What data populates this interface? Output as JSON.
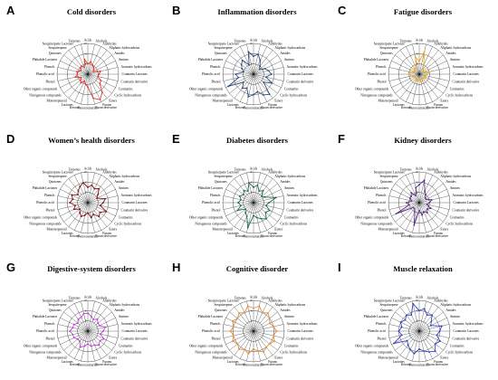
{
  "figure": {
    "panels": [
      "A",
      "B",
      "C",
      "D",
      "E",
      "F",
      "G",
      "H",
      "I"
    ]
  },
  "chart_data": [
    {
      "type": "radar",
      "panel": "A",
      "title": "Cold disorders",
      "color": "#e53935",
      "categories": [
        "Acids",
        "Alcohols",
        "Aldehydes",
        "Aliphatic hydrocarbons",
        "Amides",
        "Amines",
        "Aromatic hydrocarbons",
        "Coumarin Lactones",
        "Coumarin derivative",
        "Coumarins",
        "Cyclic hydrocarbons",
        "Esters",
        "Furans",
        "Furan derivative",
        "Furocoumarins",
        "Ketones",
        "Lactones",
        "Monoterpenoid",
        "Nitrogenous compounds",
        "Other organic compounds",
        "Phenol",
        "Phenolic acid",
        "Phenols",
        "Phthalide Lactones",
        "Quinones",
        "Sesquiterpene",
        "Sesquiterpene Lactones",
        "Terpenes"
      ],
      "ticks": [
        "20",
        "40",
        "60"
      ],
      "rmax": 60,
      "values": [
        20,
        25,
        20,
        18,
        15,
        12,
        25,
        22,
        20,
        28,
        30,
        45,
        55,
        48,
        25,
        20,
        15,
        22,
        18,
        15,
        25,
        20,
        22,
        15,
        18,
        20,
        15,
        30
      ]
    },
    {
      "type": "radar",
      "panel": "B",
      "title": "Inflammation disorders",
      "color": "#2e4d7b",
      "categories": [
        "Acids",
        "Alcohols",
        "Aldehydes",
        "Aliphatic hydrocarbons",
        "Amides",
        "Amines",
        "Aromatic hydrocarbons",
        "Coumarin Lactones",
        "Coumarin derivative",
        "Coumarins",
        "Cyclic hydrocarbons",
        "Esters",
        "Furans",
        "Furan derivative",
        "Furocoumarins",
        "Ketones",
        "Lactones",
        "Monoterpenoid",
        "Nitrogenous compounds",
        "Other organic compounds",
        "Phenol",
        "Phenolic acid",
        "Phenols",
        "Phthalide Lactones",
        "Quinones",
        "Sesquiterpene",
        "Sesquiterpene Lactones",
        "Terpenes"
      ],
      "ticks": [
        "20",
        "40",
        "60"
      ],
      "rmax": 60,
      "values": [
        35,
        40,
        30,
        20,
        15,
        25,
        30,
        35,
        25,
        40,
        25,
        50,
        45,
        35,
        40,
        45,
        30,
        35,
        25,
        55,
        30,
        35,
        20,
        25,
        30,
        35,
        20,
        45
      ]
    },
    {
      "type": "radar",
      "panel": "C",
      "title": "Fatigue disorders",
      "color": "#f0a81c",
      "categories": [
        "Acids",
        "Alcohols",
        "Aldehydes",
        "Aliphatic hydrocarbons",
        "Amides",
        "Amines",
        "Aromatic hydrocarbons",
        "Coumarin Lactones",
        "Coumarin derivative",
        "Coumarins",
        "Cyclic hydrocarbons",
        "Esters",
        "Furans",
        "Furan derivative",
        "Furocoumarins",
        "Ketones",
        "Lactones",
        "Monoterpenoid",
        "Nitrogenous compounds",
        "Other organic compounds",
        "Phenol",
        "Phenolic acid",
        "Phenols",
        "Phthalide Lactones",
        "Quinones",
        "Sesquiterpene",
        "Sesquiterpene Lactones",
        "Terpenes"
      ],
      "ticks": [
        "20",
        "40",
        "60"
      ],
      "rmax": 60,
      "values": [
        25,
        45,
        20,
        12,
        10,
        10,
        20,
        15,
        10,
        15,
        12,
        10,
        15,
        15,
        10,
        12,
        15,
        10,
        10,
        12,
        15,
        20,
        18,
        10,
        12,
        15,
        12,
        35
      ]
    },
    {
      "type": "radar",
      "panel": "D",
      "title": "Women’s health disorders",
      "color": "#7b1113",
      "categories": [
        "Acids",
        "Alcohols",
        "Aldehydes",
        "Aliphatic hydrocarbons",
        "Amides",
        "Amines",
        "Aromatic hydrocarbons",
        "Coumarin Lactones",
        "Coumarin derivative",
        "Coumarins",
        "Cyclic hydrocarbons",
        "Esters",
        "Furans",
        "Furan derivative",
        "Furocoumarins",
        "Ketones",
        "Lactones",
        "Monoterpenoid",
        "Nitrogenous compounds",
        "Other organic compounds",
        "Phenol",
        "Phenolic acid",
        "Phenols",
        "Phthalide Lactones",
        "Quinones",
        "Sesquiterpene",
        "Sesquiterpene Lactones",
        "Terpenes"
      ],
      "ticks": [
        "20",
        "40",
        "60"
      ],
      "rmax": 60,
      "values": [
        30,
        35,
        30,
        35,
        25,
        20,
        35,
        30,
        25,
        40,
        30,
        35,
        25,
        30,
        20,
        25,
        30,
        25,
        20,
        30,
        25,
        35,
        30,
        35,
        25,
        30,
        35,
        40
      ]
    },
    {
      "type": "radar",
      "panel": "E",
      "title": "Diabetes disorders",
      "color": "#1d6b45",
      "categories": [
        "Acids",
        "Alcohols",
        "Aldehydes",
        "Aliphatic hydrocarbons",
        "Amides",
        "Amines",
        "Aromatic hydrocarbons",
        "Coumarin Lactones",
        "Coumarin derivative",
        "Coumarins",
        "Cyclic hydrocarbons",
        "Esters",
        "Furans",
        "Furan derivative",
        "Furocoumarins",
        "Ketones",
        "Lactones",
        "Monoterpenoid",
        "Nitrogenous compounds",
        "Other organic compounds",
        "Phenol",
        "Phenolic acid",
        "Phenols",
        "Phthalide Lactones",
        "Quinones",
        "Sesquiterpene",
        "Sesquiterpene Lactones",
        "Terpenes"
      ],
      "ticks": [
        "20",
        "40",
        "60"
      ],
      "rmax": 60,
      "values": [
        30,
        35,
        25,
        30,
        20,
        25,
        45,
        30,
        25,
        35,
        30,
        40,
        35,
        30,
        25,
        50,
        30,
        25,
        20,
        35,
        25,
        30,
        25,
        30,
        25,
        30,
        25,
        40
      ]
    },
    {
      "type": "radar",
      "panel": "F",
      "title": "Kidney disorders",
      "color": "#5a2a8c",
      "categories": [
        "Acids",
        "Alcohols",
        "Aldehydes",
        "Aliphatic hydrocarbons",
        "Amides",
        "Amines",
        "Aromatic hydrocarbons",
        "Coumarin Lactones",
        "Coumarin derivative",
        "Coumarins",
        "Cyclic hydrocarbons",
        "Esters",
        "Furans",
        "Furan derivative",
        "Furocoumarins",
        "Ketones",
        "Lactones",
        "Monoterpenoid",
        "Nitrogenous compounds",
        "Other organic compounds",
        "Phenol",
        "Phenolic acid",
        "Phenols",
        "Phthalide Lactones",
        "Quinones",
        "Sesquiterpene",
        "Sesquiterpene Lactones",
        "Terpenes"
      ],
      "ticks": [
        "20",
        "40",
        "60"
      ],
      "rmax": 60,
      "values": [
        35,
        45,
        25,
        20,
        15,
        15,
        25,
        20,
        15,
        25,
        20,
        25,
        20,
        25,
        15,
        45,
        20,
        15,
        15,
        50,
        20,
        25,
        15,
        20,
        20,
        25,
        15,
        30
      ]
    },
    {
      "type": "radar",
      "panel": "G",
      "title": "Digestive-system disorders",
      "color": "#c040d8",
      "categories": [
        "Acids",
        "Alcohols",
        "Aldehydes",
        "Aliphatic hydrocarbons",
        "Amides",
        "Amines",
        "Aromatic hydrocarbons",
        "Coumarin Lactones",
        "Coumarin derivative",
        "Coumarins",
        "Cyclic hydrocarbons",
        "Esters",
        "Furans",
        "Furan derivative",
        "Furocoumarins",
        "Ketones",
        "Lactones",
        "Monoterpenoid",
        "Nitrogenous compounds",
        "Other organic compounds",
        "Phenol",
        "Phenolic acid",
        "Phenols",
        "Phthalide Lactones",
        "Quinones",
        "Sesquiterpene",
        "Sesquiterpene Lactones",
        "Terpenes"
      ],
      "ticks": [
        "20",
        "40",
        "60"
      ],
      "rmax": 60,
      "values": [
        35,
        30,
        25,
        30,
        25,
        25,
        35,
        30,
        25,
        35,
        30,
        35,
        30,
        30,
        25,
        30,
        35,
        25,
        25,
        30,
        30,
        35,
        30,
        30,
        25,
        30,
        30,
        35
      ]
    },
    {
      "type": "radar",
      "panel": "H",
      "title": "Cognitive disorder",
      "color": "#e6892f",
      "categories": [
        "Acids",
        "Alcohols",
        "Aldehydes",
        "Aliphatic hydrocarbons",
        "Amides",
        "Amines",
        "Aromatic hydrocarbons",
        "Coumarin Lactones",
        "Coumarin derivative",
        "Coumarins",
        "Cyclic hydrocarbons",
        "Esters",
        "Furans",
        "Furan derivative",
        "Furocoumarins",
        "Ketones",
        "Lactones",
        "Monoterpenoid",
        "Nitrogenous compounds",
        "Other organic compounds",
        "Phenol",
        "Phenolic acid",
        "Phenols",
        "Phthalide Lactones",
        "Quinones",
        "Sesquiterpene",
        "Sesquiterpene Lactones",
        "Terpenes"
      ],
      "ticks": [
        "20",
        "40",
        "60"
      ],
      "rmax": 60,
      "values": [
        45,
        50,
        40,
        45,
        40,
        35,
        40,
        45,
        40,
        45,
        40,
        40,
        45,
        40,
        35,
        45,
        40,
        45,
        40,
        45,
        40,
        45,
        40,
        45,
        40,
        45,
        40,
        50
      ]
    },
    {
      "type": "radar",
      "panel": "I",
      "title": "Muscle relaxation",
      "color": "#2f3fc4",
      "categories": [
        "Acids",
        "Alcohols",
        "Aldehydes",
        "Aliphatic hydrocarbons",
        "Amides",
        "Amines",
        "Aromatic hydrocarbons",
        "Coumarin Lactones",
        "Coumarin derivative",
        "Coumarins",
        "Cyclic hydrocarbons",
        "Esters",
        "Furans",
        "Furan derivative",
        "Furocoumarins",
        "Ketones",
        "Lactones",
        "Monoterpenoid",
        "Nitrogenous compounds",
        "Other organic compounds",
        "Phenol",
        "Phenolic acid",
        "Phenols",
        "Phthalide Lactones",
        "Quinones",
        "Sesquiterpene",
        "Sesquiterpene Lactones",
        "Terpenes"
      ],
      "ticks": [
        "20",
        "40",
        "60"
      ],
      "rmax": 60,
      "values": [
        40,
        45,
        35,
        40,
        30,
        25,
        45,
        40,
        35,
        45,
        40,
        50,
        45,
        40,
        35,
        45,
        40,
        35,
        30,
        55,
        35,
        40,
        35,
        40,
        35,
        40,
        35,
        55
      ]
    }
  ]
}
